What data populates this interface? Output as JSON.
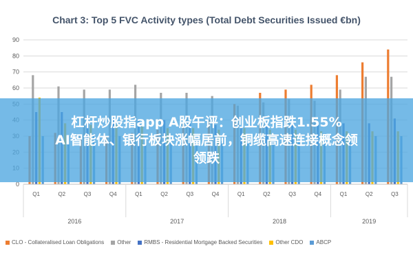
{
  "chart_data": {
    "type": "bar",
    "title": "Chart 3: Top 5 FVC Activity types (Total Debt Securities Issued €bn)",
    "xlabel": "",
    "ylabel": "",
    "ylim": [
      0,
      90
    ],
    "yticks": [
      0,
      10,
      20,
      30,
      40,
      50,
      60,
      70,
      80,
      90
    ],
    "grid": true,
    "legend_position": "bottom",
    "categories": [
      "Q1",
      "Q2",
      "Q3",
      "Q4",
      "Q1",
      "Q2",
      "Q3",
      "Q4",
      "Q1",
      "Q2",
      "Q3",
      "Q4",
      "Q1",
      "Q2",
      "Q3"
    ],
    "years": [
      {
        "label": "2016",
        "quarters": 4
      },
      {
        "label": "2017",
        "quarters": 4
      },
      {
        "label": "2018",
        "quarters": 4
      },
      {
        "label": "2019",
        "quarters": 3
      }
    ],
    "series": [
      {
        "name": "CLO - Collateralised Loan Obligations",
        "color": "#ed7d31",
        "values": [
          30,
          32,
          30,
          30,
          32,
          34,
          38,
          40,
          50,
          57,
          59,
          62,
          68,
          76,
          84
        ]
      },
      {
        "name": "Other",
        "color": "#a5a5a5",
        "values": [
          68,
          61,
          59,
          59,
          62,
          57,
          57,
          55,
          49,
          51,
          53,
          52,
          59,
          67,
          67
        ]
      },
      {
        "name": "RMBS - Residential Mortgage Backed Securities",
        "color": "#4472c4",
        "values": [
          45,
          45,
          42,
          40,
          40,
          40,
          38,
          37,
          36,
          36,
          37,
          37,
          38,
          38,
          41
        ]
      },
      {
        "name": "Other CDO",
        "color": "#ffc000",
        "values": [
          54,
          38,
          37,
          37,
          36,
          35,
          35,
          34,
          35,
          34,
          34,
          33,
          33,
          33,
          33
        ]
      },
      {
        "name": "ABCP",
        "color": "#5b9bd5",
        "values": [
          30,
          30,
          30,
          30,
          28,
          28,
          27,
          27,
          27,
          27,
          27,
          27,
          27,
          30,
          30
        ]
      }
    ]
  },
  "overlay": {
    "line1": "杠杆炒股指app A股午评：创业板指跌1.55%",
    "line2": "AI智能体、银行板块涨幅居前，铜缆高速连接概念领",
    "line3": "领跌"
  }
}
